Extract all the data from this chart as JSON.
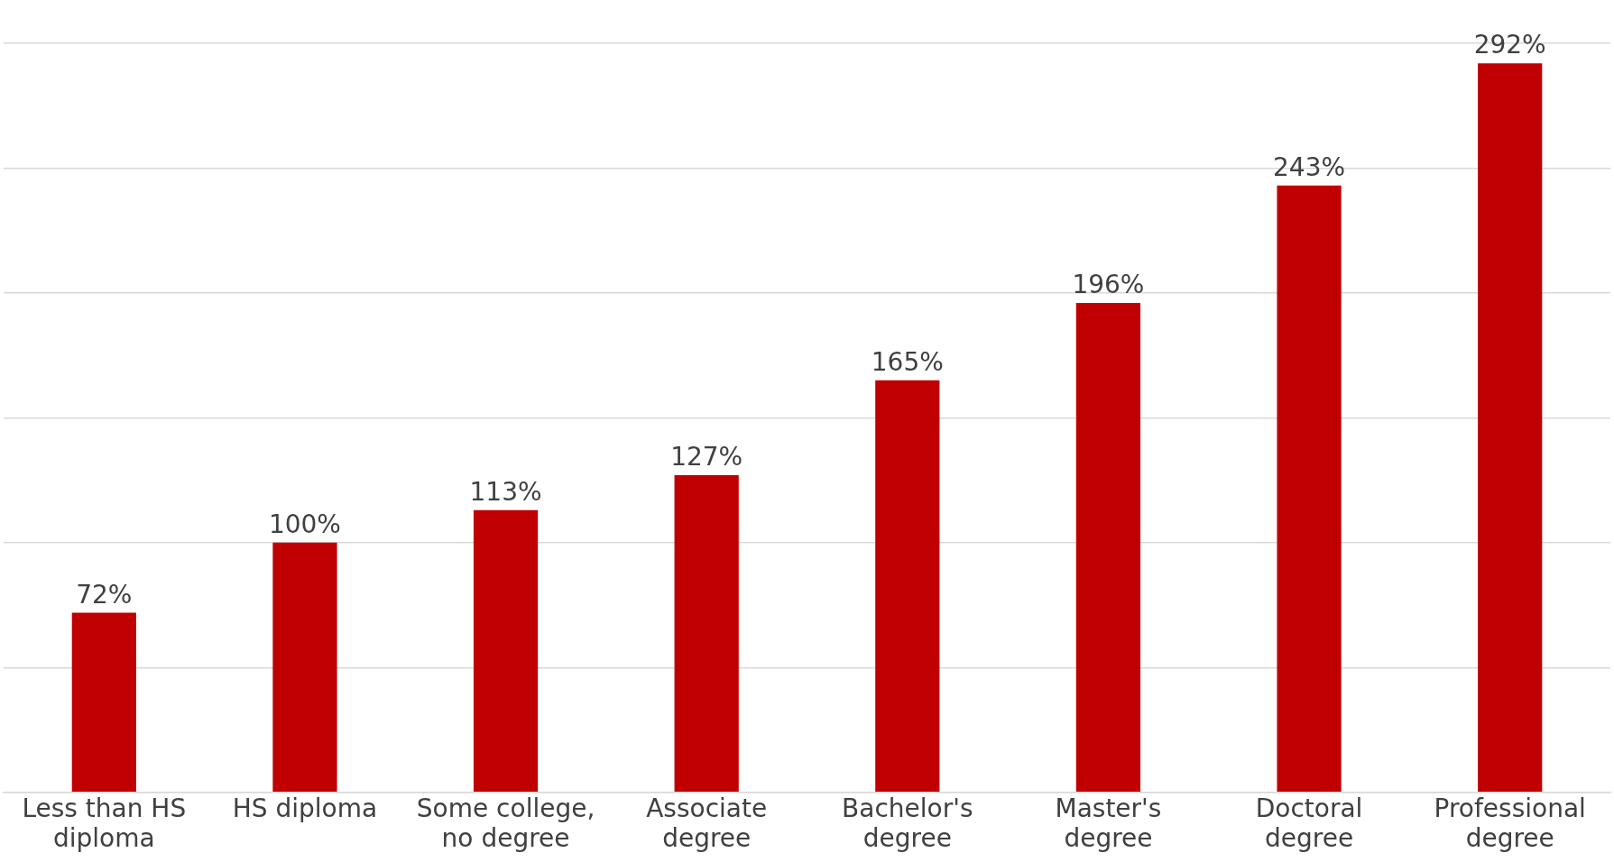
{
  "chart_data": {
    "type": "bar",
    "categories": [
      "Less than HS diploma",
      "HS diploma",
      "Some college, no degree",
      "Associate degree",
      "Bachelor's degree",
      "Master's degree",
      "Doctoral degree",
      "Professional degree"
    ],
    "values": [
      72,
      100,
      113,
      127,
      165,
      196,
      243,
      292
    ],
    "value_labels": [
      "72%",
      "100%",
      "113%",
      "127%",
      "165%",
      "196%",
      "243%",
      "292%"
    ],
    "color": "#c00000",
    "ylim": [
      0,
      300
    ],
    "yticks": [
      {
        "value": 0,
        "label": null
      },
      {
        "value": 50,
        "label": null
      },
      {
        "value": 100,
        "label": null
      },
      {
        "value": 150,
        "label": null
      },
      {
        "value": 200,
        "label": null
      },
      {
        "value": 250,
        "label": null
      },
      {
        "value": 300,
        "label": null
      }
    ],
    "tick_labels": "x",
    "grid": "y",
    "legend": false
  }
}
